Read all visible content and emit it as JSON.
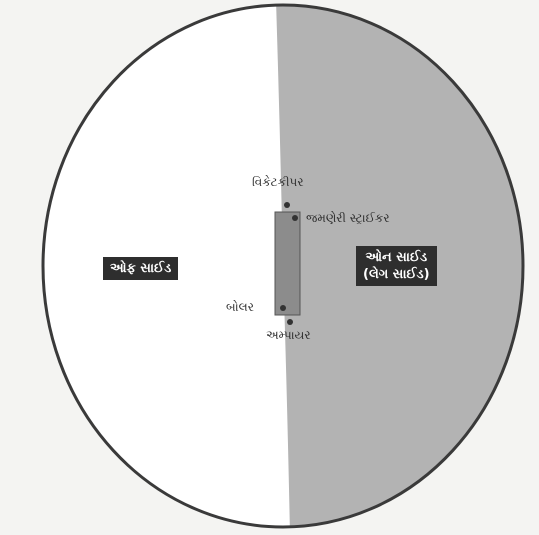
{
  "diagram": {
    "labels": {
      "wicketkeeper": "વિકેટકીપર",
      "right_striker": "જમણેરી સ્ટ્રાઈકર",
      "bowler": "બોલર",
      "umpire": "અમ્પાયર",
      "off_side": "ઓફ સાઈડ",
      "on_side_line1": "ઓન સાઈડ",
      "on_side_line2": "(લેગ સાઈડ)"
    },
    "colors": {
      "off_side_fill": "#ffffff",
      "on_side_fill": "#b3b3b3",
      "boundary_stroke": "#3a3a3a",
      "pitch_fill": "#8c8c8c",
      "label_box_bg": "#2e2e2e"
    }
  }
}
